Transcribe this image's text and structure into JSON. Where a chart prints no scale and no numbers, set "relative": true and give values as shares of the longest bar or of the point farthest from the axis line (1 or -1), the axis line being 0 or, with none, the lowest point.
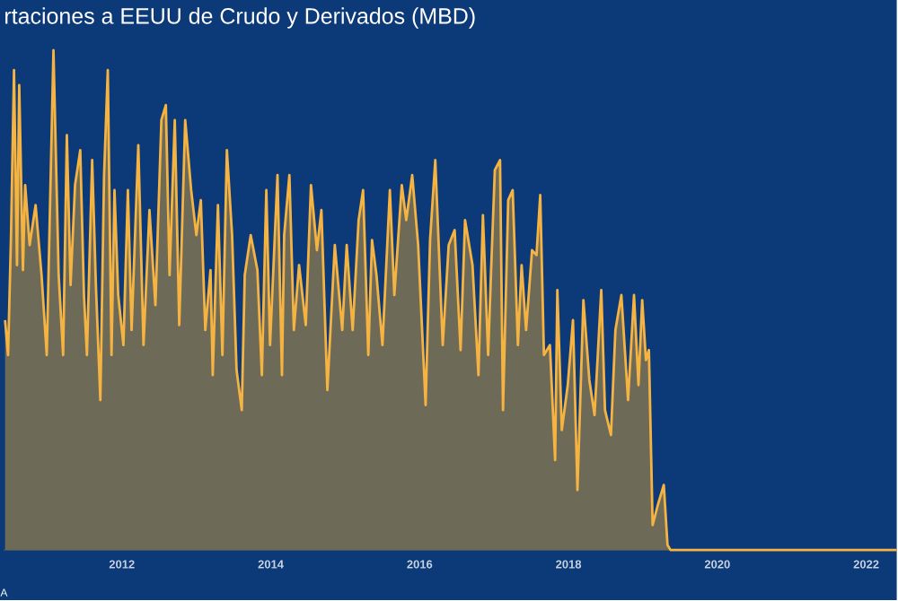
{
  "chart_data": {
    "type": "area",
    "title": "rtaciones a EEUU de Crudo y Derivados (MBD)",
    "relative": true,
    "annotations": [
      "A"
    ],
    "xlim": [
      2010.41,
      2022.41
    ],
    "xticks": [
      2012,
      2014,
      2016,
      2018,
      2020,
      2022
    ],
    "series": [
      {
        "color": "#f5b342",
        "x": [
          2010.43,
          2010.47,
          2010.51,
          2010.55,
          2010.59,
          2010.62,
          2010.67,
          2010.7,
          2010.76,
          2010.84,
          2010.92,
          2010.99,
          2011.08,
          2011.15,
          2011.21,
          2011.26,
          2011.31,
          2011.37,
          2011.44,
          2011.49,
          2011.53,
          2011.6,
          2011.65,
          2011.71,
          2011.76,
          2011.81,
          2011.86,
          2011.9,
          2011.95,
          2012.02,
          2012.08,
          2012.13,
          2012.22,
          2012.29,
          2012.37,
          2012.45,
          2012.53,
          2012.59,
          2012.64,
          2012.71,
          2012.77,
          2012.85,
          2012.93,
          2013.0,
          2013.06,
          2013.12,
          2013.19,
          2013.22,
          2013.29,
          2013.35,
          2013.41,
          2013.48,
          2013.54,
          2013.61,
          2013.65,
          2013.73,
          2013.82,
          2013.88,
          2013.94,
          2013.99,
          2014.09,
          2014.15,
          2014.18,
          2014.25,
          2014.31,
          2014.38,
          2014.47,
          2014.54,
          2014.62,
          2014.68,
          2014.76,
          2014.86,
          2014.96,
          2015.02,
          2015.1,
          2015.18,
          2015.24,
          2015.31,
          2015.36,
          2015.42,
          2015.5,
          2015.6,
          2015.66,
          2015.76,
          2015.82,
          2015.9,
          2015.98,
          2016.08,
          2016.14,
          2016.21,
          2016.31,
          2016.39,
          2016.47,
          2016.55,
          2016.61,
          2016.71,
          2016.79,
          2016.85,
          2016.92,
          2016.96,
          2017.01,
          2017.08,
          2017.12,
          2017.19,
          2017.25,
          2017.32,
          2017.37,
          2017.43,
          2017.51,
          2017.57,
          2017.62,
          2017.67,
          2017.75,
          2017.82,
          2017.85,
          2017.91,
          2017.99,
          2018.06,
          2018.12,
          2018.2,
          2018.28,
          2018.35,
          2018.44,
          2018.49,
          2018.57,
          2018.63,
          2018.71,
          2018.8,
          2018.88,
          2018.94,
          2018.99,
          2019.04,
          2019.08,
          2019.13,
          2019.2,
          2019.28,
          2019.33,
          2019.37,
          2022.41
        ],
        "values": [
          0.46,
          0.39,
          0.63,
          0.96,
          0.57,
          0.93,
          0.56,
          0.73,
          0.61,
          0.69,
          0.55,
          0.39,
          1.0,
          0.55,
          0.39,
          0.83,
          0.53,
          0.73,
          0.8,
          0.51,
          0.39,
          0.78,
          0.53,
          0.3,
          0.75,
          0.96,
          0.39,
          0.72,
          0.51,
          0.41,
          0.72,
          0.44,
          0.81,
          0.41,
          0.68,
          0.49,
          0.86,
          0.89,
          0.55,
          0.86,
          0.45,
          0.86,
          0.72,
          0.63,
          0.7,
          0.44,
          0.56,
          0.35,
          0.69,
          0.39,
          0.8,
          0.63,
          0.36,
          0.28,
          0.55,
          0.63,
          0.56,
          0.35,
          0.72,
          0.41,
          0.75,
          0.35,
          0.63,
          0.75,
          0.44,
          0.57,
          0.45,
          0.73,
          0.6,
          0.68,
          0.32,
          0.61,
          0.44,
          0.61,
          0.44,
          0.66,
          0.72,
          0.39,
          0.62,
          0.55,
          0.41,
          0.72,
          0.51,
          0.73,
          0.66,
          0.75,
          0.61,
          0.29,
          0.62,
          0.78,
          0.41,
          0.61,
          0.64,
          0.4,
          0.66,
          0.57,
          0.35,
          0.67,
          0.39,
          0.56,
          0.76,
          0.78,
          0.28,
          0.7,
          0.72,
          0.41,
          0.57,
          0.44,
          0.6,
          0.59,
          0.71,
          0.39,
          0.41,
          0.18,
          0.52,
          0.24,
          0.33,
          0.46,
          0.12,
          0.5,
          0.34,
          0.27,
          0.52,
          0.28,
          0.23,
          0.44,
          0.51,
          0.3,
          0.51,
          0.33,
          0.5,
          0.38,
          0.4,
          0.05,
          0.09,
          0.13,
          0.01,
          0.0,
          0.0
        ]
      }
    ]
  }
}
